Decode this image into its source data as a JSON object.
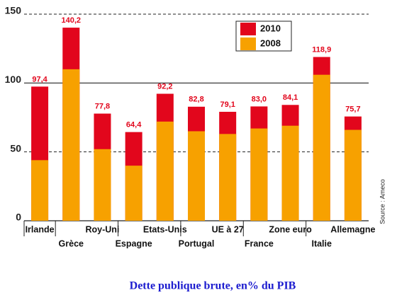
{
  "chart_data": {
    "type": "overlap-bar",
    "title": "Dette publique brute, en% du PIB",
    "source": "Source : Ameco",
    "categories": [
      "Irlande",
      "Grèce",
      "Roy-Uni",
      "Espagne",
      "Etats-Unis",
      "Portugal",
      "UE à 27",
      "France",
      "Zone euro",
      "Italie",
      "Allemagne"
    ],
    "series": [
      {
        "name": "2010",
        "color": "#e2061c",
        "values": [
          97.4,
          140.2,
          77.8,
          64.4,
          92.2,
          82.8,
          79.1,
          83.0,
          84.1,
          118.9,
          75.7
        ],
        "value_labels": [
          "97,4",
          "140,2",
          "77,8",
          "64,4",
          "92,2",
          "82,8",
          "79,1",
          "83,0",
          "84,1",
          "118,9",
          "75,7"
        ]
      },
      {
        "name": "2008",
        "color": "#f7a100",
        "values": [
          44,
          110,
          52,
          40,
          72,
          65,
          63,
          67,
          69,
          106,
          66
        ]
      }
    ],
    "ylim": [
      0,
      150
    ],
    "yticks": [
      0,
      50,
      100,
      150
    ],
    "grid": true
  }
}
